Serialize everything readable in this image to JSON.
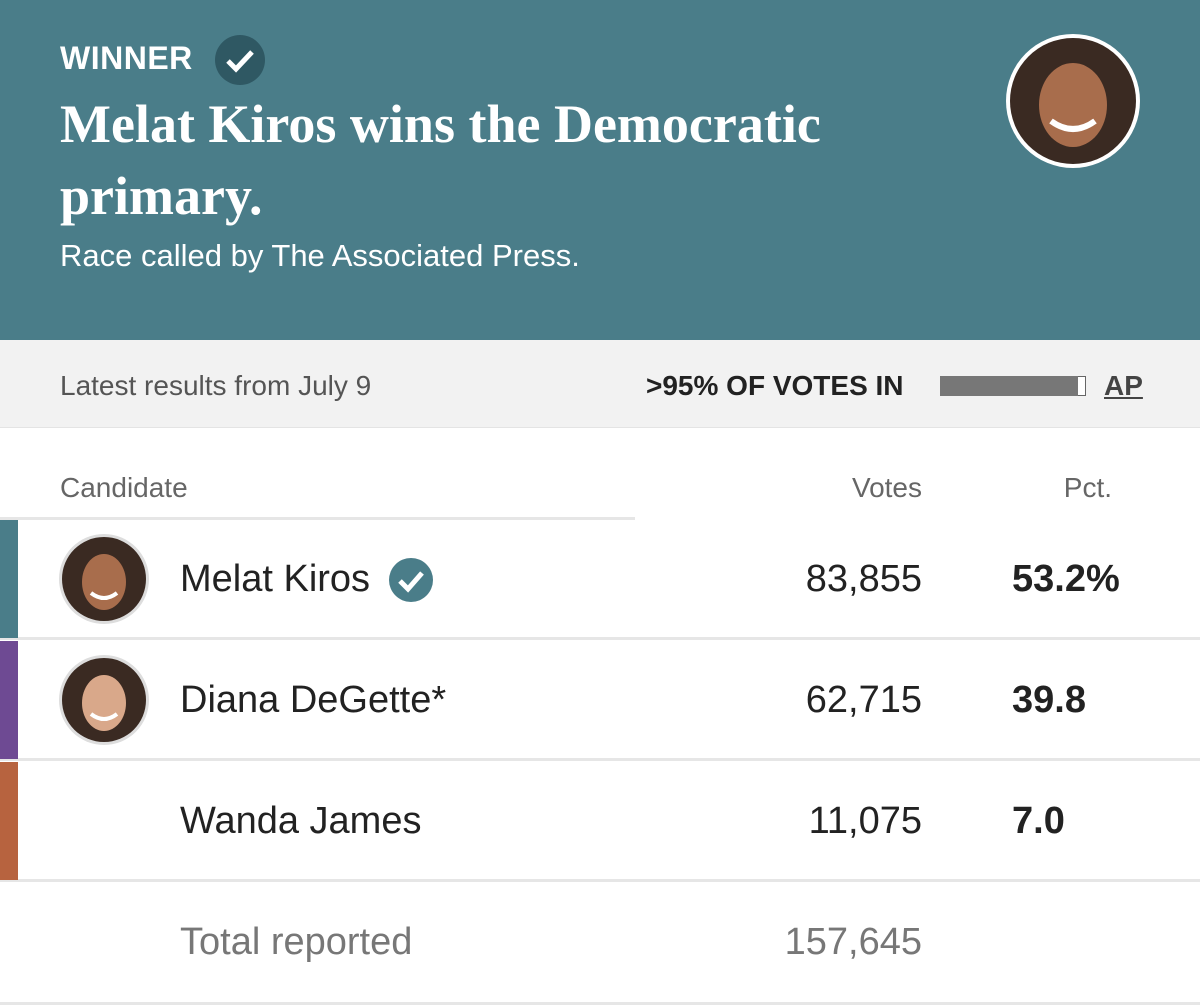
{
  "header": {
    "label": "WINNER",
    "title": "Melat Kiros wins the Democratic primary.",
    "subtitle": "Race called by The Associated Press."
  },
  "status": {
    "latest": "Latest results from July 9",
    "votes_in": ">95% OF VOTES IN",
    "source": "AP"
  },
  "table": {
    "columns": [
      "Candidate",
      "Votes",
      "Pct."
    ],
    "rows": [
      {
        "name": "Melat Kiros",
        "votes": "83,855",
        "pct": "53.2%",
        "color": "#4a7d89",
        "winner": true,
        "photo": true
      },
      {
        "name": "Diana DeGette*",
        "votes": "62,715",
        "pct": "39.8",
        "color": "#6e4a93",
        "winner": false,
        "photo": true
      },
      {
        "name": "Wanda James",
        "votes": "11,075",
        "pct": "7.0",
        "color": "#b7633f",
        "winner": false,
        "photo": false
      }
    ],
    "total": {
      "label": "Total reported",
      "votes": "157,645"
    }
  }
}
